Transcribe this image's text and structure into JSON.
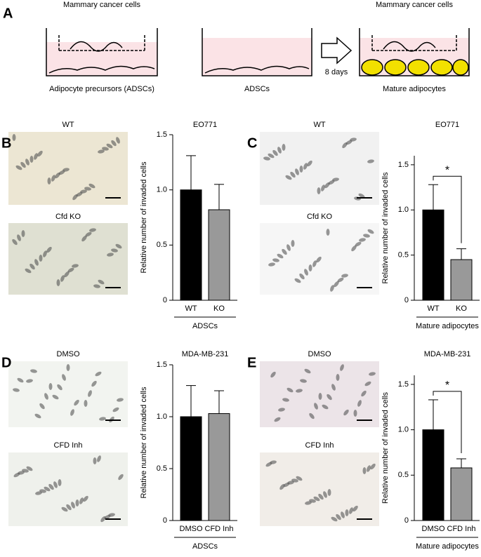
{
  "panel_labels": [
    "A",
    "B",
    "C",
    "D",
    "E"
  ],
  "schematic": {
    "left_top": "Mammary cancer cells",
    "left_bottom": "Adipocyte precursors (ADSCs)",
    "middle_bottom": "ADSCs",
    "arrow_label": "8 days",
    "right_top": "Mammary cancer cells",
    "right_bottom": "Mature adipocytes"
  },
  "image_labels": [
    "WT",
    "Cfd KO",
    "WT",
    "Cfd KO",
    "DMSO",
    "CFD Inh",
    "DMSO",
    "CFD Inh"
  ],
  "chart_data": [
    {
      "type": "bar",
      "title": "EO771",
      "ylabel": "Relative number of invaded cells",
      "categories": [
        "WT",
        "KO"
      ],
      "values": [
        1.0,
        0.82
      ],
      "errors": [
        0.31,
        0.23
      ],
      "colors": [
        "#000000",
        "#999999"
      ],
      "group_label": "ADSCs",
      "ylim": [
        0,
        1.5
      ],
      "yticks": [
        0,
        0.5,
        {
          "value": 1,
          "label": "1.0"
        },
        1.5
      ]
    },
    {
      "type": "bar",
      "title": "EO771",
      "ylabel": "Relative number of invaded cells",
      "categories": [
        "WT",
        "KO"
      ],
      "values": [
        1.0,
        0.45
      ],
      "errors": [
        0.28,
        0.12
      ],
      "colors": [
        "#000000",
        "#999999"
      ],
      "group_label": "Mature adipocytes",
      "significance": "*",
      "ylim": [
        0,
        1.6
      ],
      "yticks": [
        0,
        0.5,
        {
          "value": 1,
          "label": "1.0"
        },
        1.5
      ]
    },
    {
      "type": "bar",
      "title": "MDA-MB-231",
      "ylabel": "Relative number of invaded cells",
      "categories": [
        "DMSO",
        "CFD Inh"
      ],
      "values": [
        1.0,
        1.03
      ],
      "errors": [
        0.3,
        0.22
      ],
      "colors": [
        "#000000",
        "#999999"
      ],
      "group_label": "ADSCs",
      "ylim": [
        0,
        1.5
      ],
      "yticks": [
        0,
        0.5,
        {
          "value": 1,
          "label": "1.0"
        },
        1.5
      ]
    },
    {
      "type": "bar",
      "title": "MDA-MB-231",
      "ylabel": "Relative number of invaded cells",
      "categories": [
        "DMSO",
        "CFD Inh"
      ],
      "values": [
        1.0,
        0.58
      ],
      "errors": [
        0.33,
        0.1
      ],
      "colors": [
        "#000000",
        "#999999"
      ],
      "group_label": "Mature adipocytes",
      "significance": "*",
      "ylim": [
        0,
        1.6
      ],
      "yticks": [
        0,
        0.5,
        {
          "value": 1,
          "label": "1.0"
        },
        1.5
      ]
    }
  ]
}
